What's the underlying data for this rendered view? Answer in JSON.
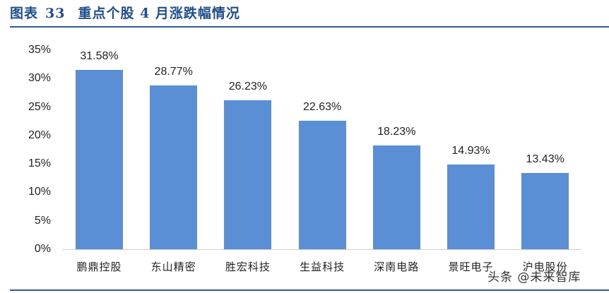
{
  "header": {
    "figure_label": "图表",
    "figure_number": "33",
    "title": "重点个股 4 月涨跌幅情况"
  },
  "watermark": "头条 @未来智库",
  "colors": {
    "bar": "#5a8fd6",
    "title": "#1f4e8c",
    "rule": "#2f5d9a"
  },
  "chart_data": {
    "type": "bar",
    "title": "重点个股 4 月涨跌幅情况",
    "xlabel": "",
    "ylabel": "",
    "categories": [
      "鹏鼎控股",
      "东山精密",
      "胜宏科技",
      "生益科技",
      "深南电路",
      "景旺电子",
      "沪电股份"
    ],
    "values": [
      31.58,
      28.77,
      26.23,
      22.63,
      18.23,
      14.93,
      13.43
    ],
    "value_labels": [
      "31.58%",
      "28.77%",
      "26.23%",
      "22.63%",
      "18.23%",
      "14.93%",
      "13.43%"
    ],
    "yticks": [
      "0%",
      "5%",
      "10%",
      "15%",
      "20%",
      "25%",
      "30%",
      "35%"
    ],
    "ylim": [
      0,
      35
    ],
    "unit": "%",
    "grid": false,
    "legend": null
  }
}
